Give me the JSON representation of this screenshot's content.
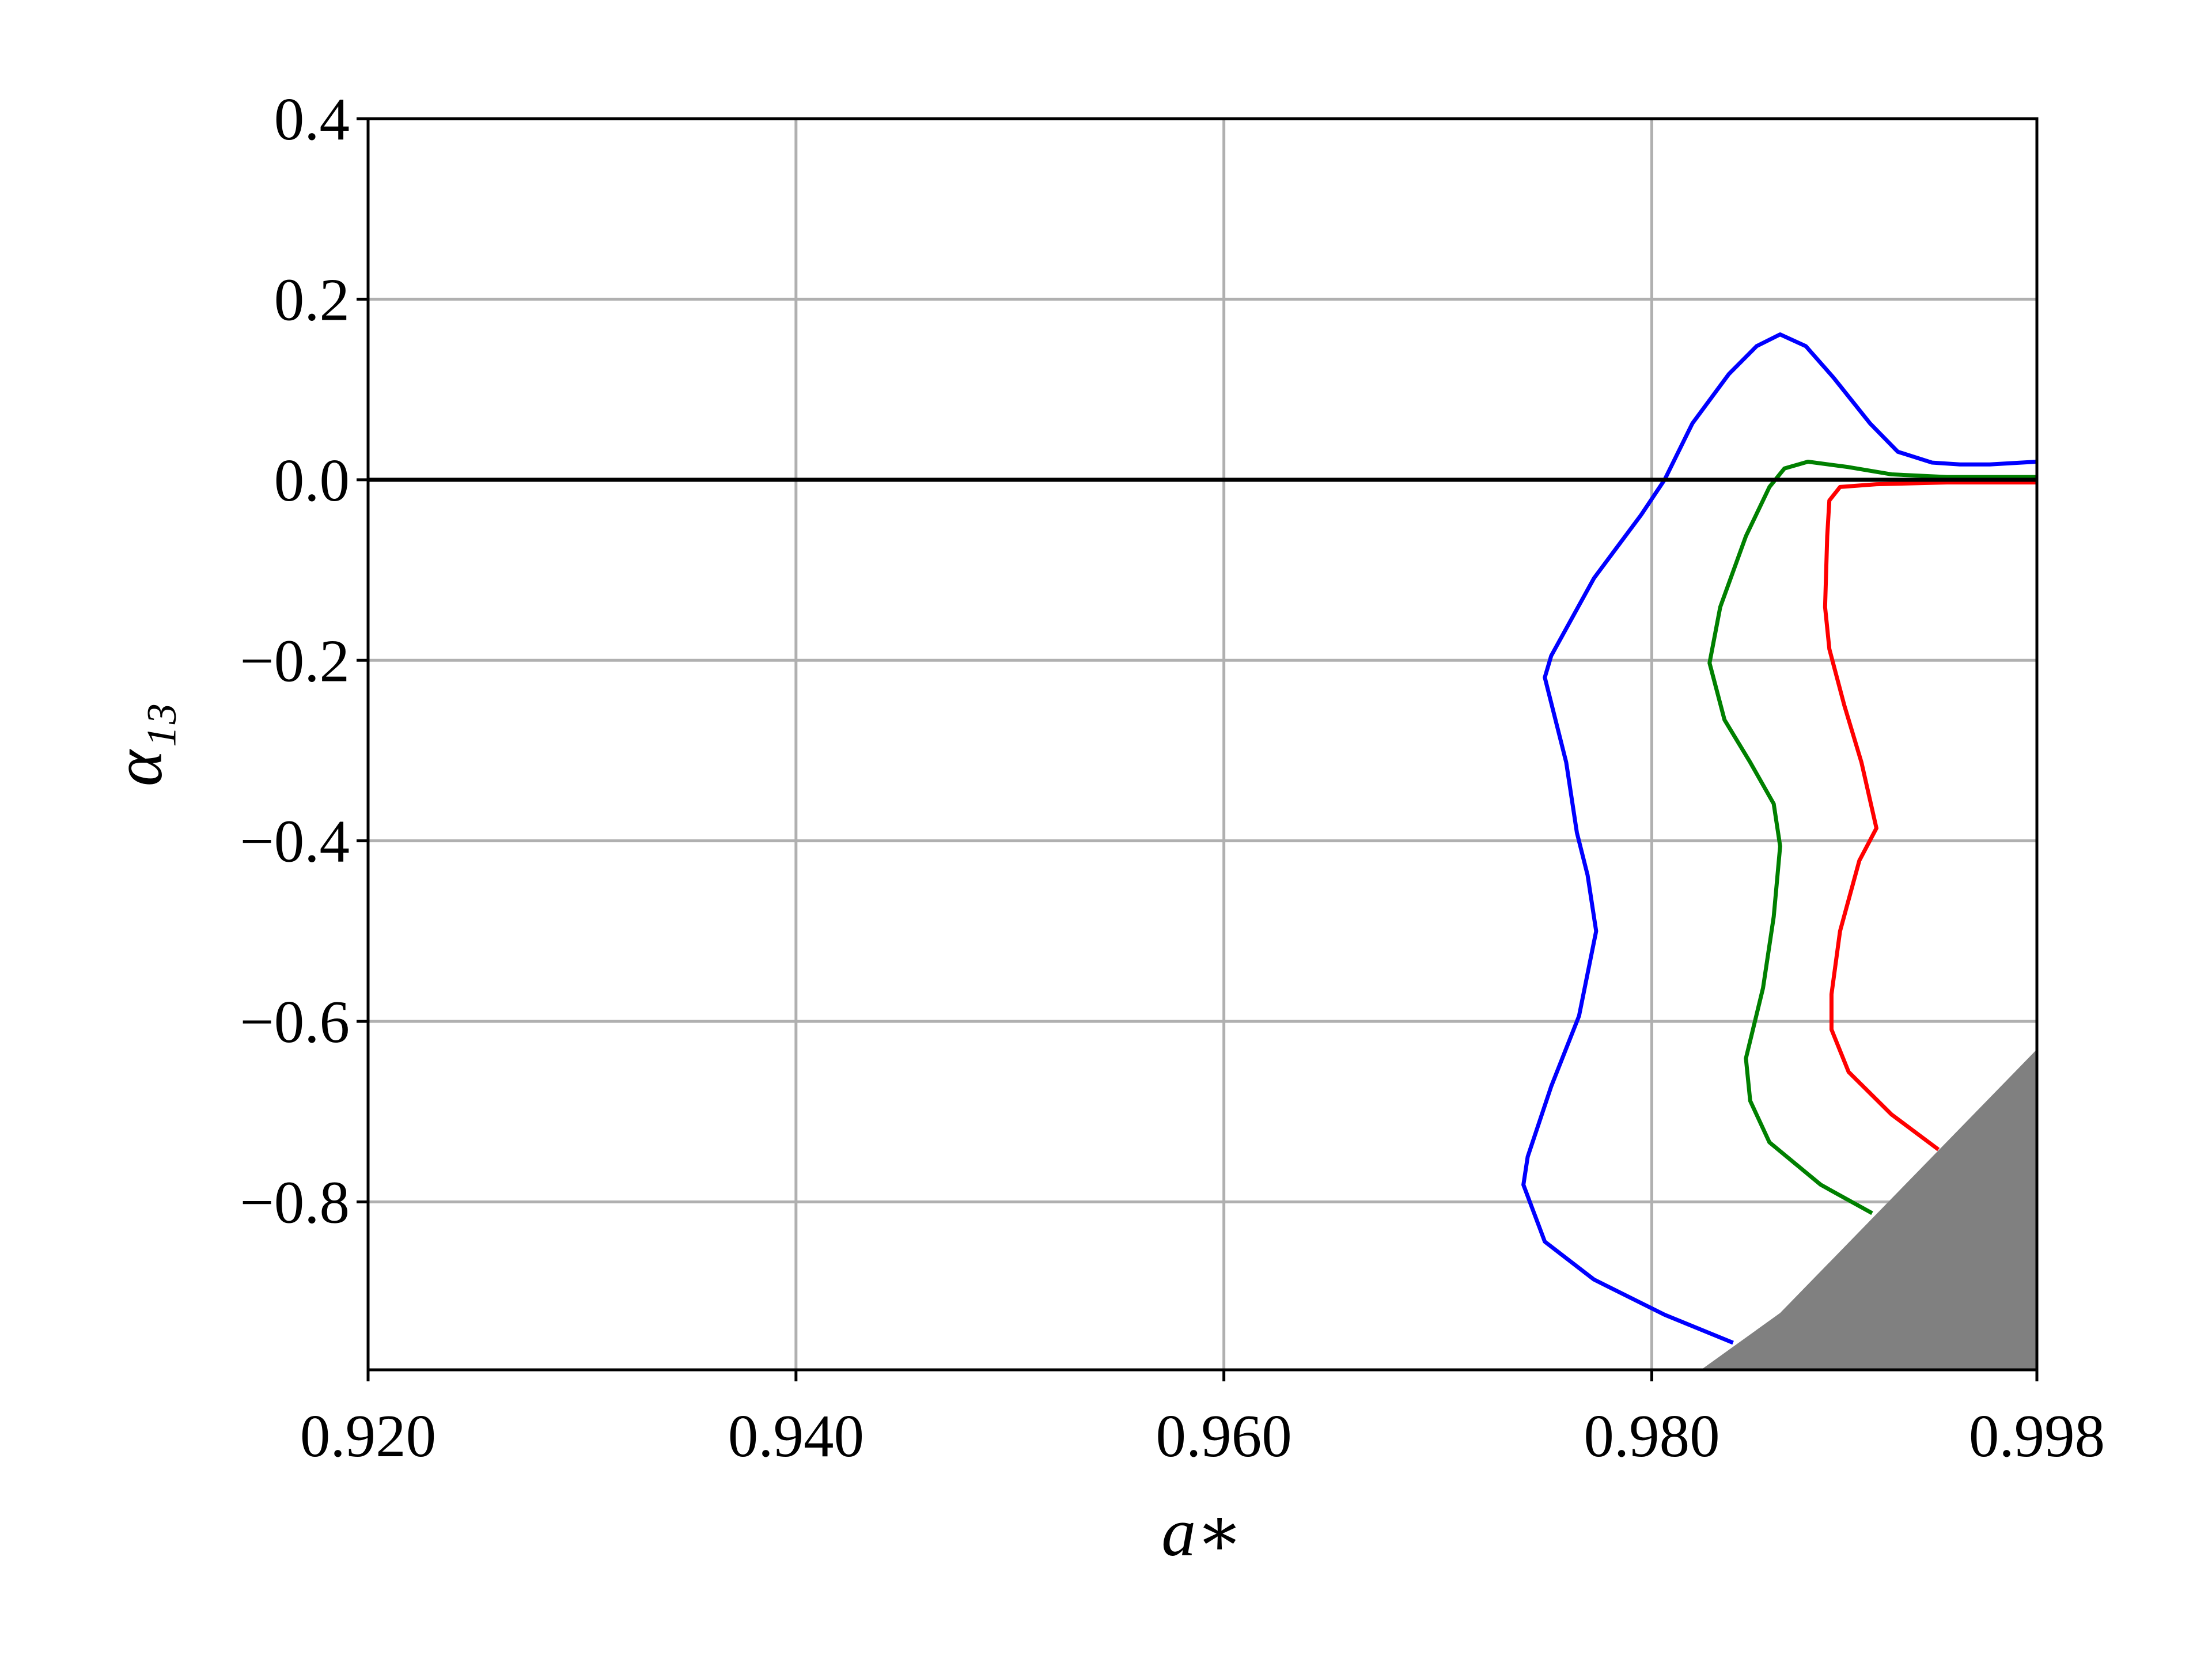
{
  "chart_data": {
    "type": "line",
    "xlabel": "a∗",
    "ylabel": "α₁₃",
    "xlim": [
      0.92,
      0.998
    ],
    "ylim": [
      -0.986,
      0.4
    ],
    "xticks": [
      {
        "value": 0.92,
        "label": "0.920"
      },
      {
        "value": 0.94,
        "label": "0.940"
      },
      {
        "value": 0.96,
        "label": "0.960"
      },
      {
        "value": 0.98,
        "label": "0.980"
      },
      {
        "value": 0.998,
        "label": "0.998"
      }
    ],
    "yticks": [
      {
        "value": -0.8,
        "label": "−0.8"
      },
      {
        "value": -0.6,
        "label": "−0.6"
      },
      {
        "value": -0.4,
        "label": "−0.4"
      },
      {
        "value": -0.2,
        "label": "−0.2"
      },
      {
        "value": 0,
        "label": "0.0"
      },
      0.2,
      0.4
    ],
    "grid": true,
    "reference_line": {
      "value": 0,
      "color": "#000000"
    },
    "series": [
      {
        "color": "#0000ff",
        "x": [
          0.9838,
          0.9806,
          0.9773,
          0.975,
          0.974,
          0.9742,
          0.9753,
          0.9766,
          0.9774,
          0.977,
          0.9765,
          0.976,
          0.975,
          0.9753,
          0.9773,
          0.9795,
          0.9806,
          0.9819,
          0.9836,
          0.9849,
          0.986,
          0.9872,
          0.9885,
          0.9902,
          0.9915,
          0.9931,
          0.9944,
          0.9958,
          0.998
        ],
        "values": [
          -0.956,
          -0.925,
          -0.886,
          -0.844,
          -0.781,
          -0.75,
          -0.672,
          -0.594,
          -0.5,
          -0.438,
          -0.391,
          -0.313,
          -0.219,
          -0.195,
          -0.109,
          -0.039,
          0,
          0.0625,
          0.117,
          0.148,
          0.161,
          0.148,
          0.113,
          0.0625,
          0.031,
          0.019,
          0.017,
          0.017,
          0.02
        ]
      },
      {
        "color": "#008000",
        "x": [
          0.9903,
          0.9879,
          0.9855,
          0.9846,
          0.9844,
          0.9852,
          0.9857,
          0.986,
          0.9857,
          0.9846,
          0.9834,
          0.9827,
          0.9832,
          0.9844,
          0.9855,
          0.9862,
          0.9873,
          0.9892,
          0.9912,
          0.9938,
          0.998
        ],
        "values": [
          -0.8125,
          -0.781,
          -0.734,
          -0.688,
          -0.641,
          -0.563,
          -0.484,
          -0.406,
          -0.359,
          -0.313,
          -0.266,
          -0.203,
          -0.141,
          -0.0625,
          -0.008,
          0.0125,
          0.02,
          0.014,
          0.006,
          0.003,
          0.003
        ]
      },
      {
        "color": "#ff0000",
        "x": [
          0.9934,
          0.9912,
          0.9892,
          0.9884,
          0.9884,
          0.9888,
          0.9897,
          0.9905,
          0.9898,
          0.989,
          0.9883,
          0.9881,
          0.9882,
          0.9883,
          0.9888,
          0.9905,
          0.9938,
          0.998
        ],
        "values": [
          -0.742,
          -0.703,
          -0.656,
          -0.609,
          -0.57,
          -0.5,
          -0.422,
          -0.386,
          -0.313,
          -0.25,
          -0.1875,
          -0.141,
          -0.0625,
          -0.023,
          -0.008,
          -0.005,
          -0.003,
          -0.003
        ]
      }
    ],
    "region": {
      "color": "#808080",
      "x": [
        0.9823,
        0.986,
        0.998,
        0.998
      ],
      "values": [
        -0.986,
        -0.923,
        -0.631,
        -0.986
      ]
    }
  }
}
